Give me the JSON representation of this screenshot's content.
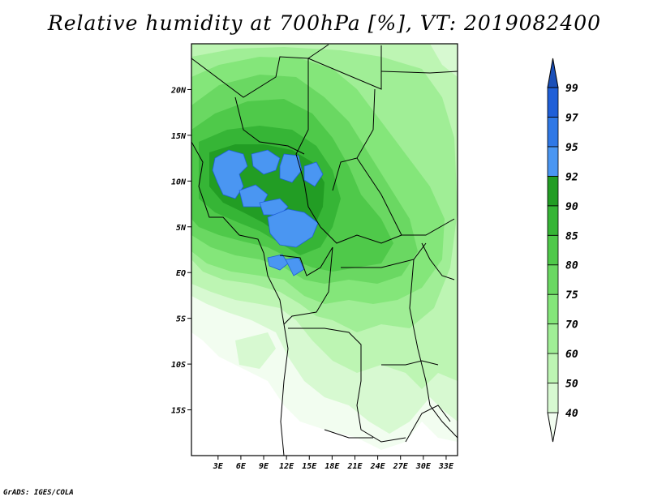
{
  "title": "Relative humidity at 700hPa [%], VT: 2019082400",
  "credit": "GrADS: IGES/COLA",
  "map": {
    "variable": "relative humidity",
    "level": "700hPa",
    "lon_range": [
      -0.5,
      34.5
    ],
    "lat_range": [
      -20,
      25
    ],
    "lon_ticks": [
      "3E",
      "6E",
      "9E",
      "12E",
      "15E",
      "18E",
      "21E",
      "24E",
      "27E",
      "30E",
      "33E"
    ],
    "lon_tick_values": [
      3,
      6,
      9,
      12,
      15,
      18,
      21,
      24,
      27,
      30,
      33
    ],
    "lat_ticks": [
      "20N",
      "15N",
      "10N",
      "5N",
      "EQ",
      "5S",
      "10S",
      "15S"
    ],
    "lat_tick_values": [
      20,
      15,
      10,
      5,
      0,
      -5,
      -10,
      -15
    ]
  },
  "colorbar": {
    "labels": [
      "40",
      "50",
      "60",
      "70",
      "75",
      "80",
      "85",
      "90",
      "92",
      "95",
      "97",
      "99"
    ],
    "colors": [
      "#f2fdf0",
      "#d7f9d1",
      "#bdf5b3",
      "#a0ee96",
      "#84e67a",
      "#6ad862",
      "#4fc94a",
      "#36b536",
      "#229d24",
      "#4a96f2",
      "#2f78e6",
      "#1f5fd8",
      "#1a4fb8"
    ]
  }
}
